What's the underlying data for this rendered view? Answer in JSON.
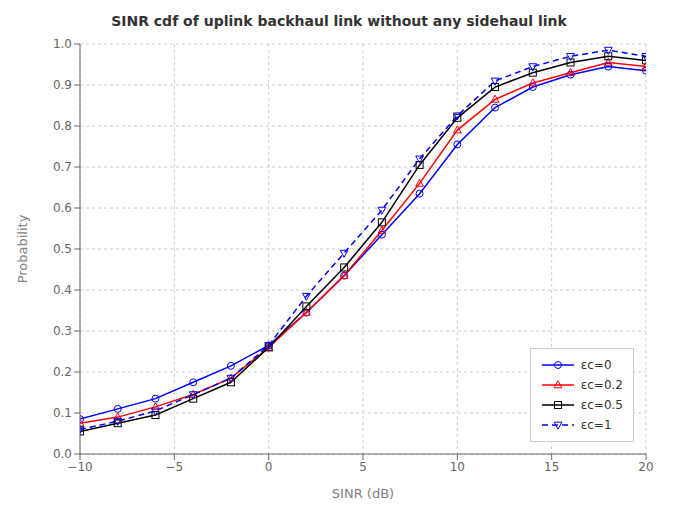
{
  "chart_data": {
    "type": "line",
    "title": "SINR cdf of uplink backhaul link without any sidehaul link",
    "xlabel": "SINR (dB)",
    "ylabel": "Probability",
    "x": [
      -10,
      -8,
      -6,
      -4,
      -2,
      0,
      2,
      4,
      6,
      8,
      10,
      12,
      14,
      16,
      18,
      20
    ],
    "series": [
      {
        "name": "εc=0",
        "color": "#0000FF",
        "marker": "circle",
        "line_style": "solid",
        "values": [
          0.085,
          0.11,
          0.135,
          0.175,
          0.215,
          0.265,
          0.345,
          0.435,
          0.535,
          0.635,
          0.755,
          0.845,
          0.895,
          0.925,
          0.945,
          0.935
        ]
      },
      {
        "name": "εc=0.2",
        "color": "#FF0000",
        "marker": "triangle-up",
        "line_style": "solid",
        "values": [
          0.075,
          0.09,
          0.115,
          0.145,
          0.185,
          0.26,
          0.345,
          0.435,
          0.545,
          0.66,
          0.79,
          0.865,
          0.905,
          0.93,
          0.955,
          0.945
        ]
      },
      {
        "name": "εc=0.5",
        "color": "#000000",
        "marker": "square",
        "line_style": "solid",
        "values": [
          0.055,
          0.075,
          0.095,
          0.135,
          0.175,
          0.26,
          0.36,
          0.455,
          0.565,
          0.705,
          0.82,
          0.895,
          0.93,
          0.955,
          0.97,
          0.96
        ]
      },
      {
        "name": "εc=1",
        "color": "#0000FF",
        "marker": "triangle-down",
        "line_style": "dashed",
        "values": [
          0.06,
          0.08,
          0.105,
          0.145,
          0.185,
          0.265,
          0.385,
          0.49,
          0.595,
          0.72,
          0.825,
          0.91,
          0.945,
          0.97,
          0.985,
          0.97
        ]
      }
    ],
    "xlim": [
      -10,
      20
    ],
    "xticks": [
      {
        "value": -10,
        "label": "−10"
      },
      {
        "value": -5,
        "label": "−5"
      },
      0,
      5,
      10,
      15,
      20
    ],
    "ylim": [
      0,
      1
    ],
    "yticks": [
      {
        "value": 0,
        "label": "0.0"
      },
      0.1,
      0.2,
      0.3,
      0.4,
      0.5,
      0.6,
      0.7,
      0.8,
      0.9,
      {
        "value": 1,
        "label": "1.0"
      }
    ],
    "grid": true,
    "legend": "lower right"
  }
}
